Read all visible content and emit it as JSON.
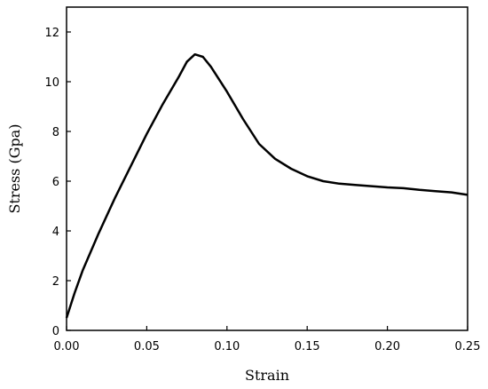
{
  "chart_data": {
    "type": "line",
    "x_label": "Strain",
    "y_label": "Stress (Gpa)",
    "x": [
      0,
      0.005,
      0.01,
      0.02,
      0.03,
      0.04,
      0.05,
      0.06,
      0.07,
      0.075,
      0.08,
      0.085,
      0.09,
      0.1,
      0.11,
      0.12,
      0.13,
      0.14,
      0.15,
      0.16,
      0.17,
      0.18,
      0.19,
      0.2,
      0.21,
      0.22,
      0.23,
      0.24,
      0.25
    ],
    "series": [
      {
        "color": "#000000",
        "values": [
          0.5,
          1.5,
          2.4,
          3.9,
          5.3,
          6.6,
          7.9,
          9.1,
          10.2,
          10.8,
          11.1,
          11.0,
          10.6,
          9.6,
          8.5,
          7.5,
          6.9,
          6.5,
          6.2,
          6.0,
          5.9,
          5.85,
          5.8,
          5.75,
          5.72,
          5.65,
          5.6,
          5.55,
          5.45
        ]
      }
    ],
    "xlim": [
      0,
      0.25
    ],
    "xticks": [
      {
        "value": 0,
        "label": "0.00"
      },
      0.05,
      {
        "value": 0.1,
        "label": "0.10"
      },
      0.15,
      {
        "value": 0.2,
        "label": "0.20"
      },
      0.25
    ],
    "ylim": [
      0,
      13
    ],
    "yticks": [
      0,
      2,
      4,
      6,
      8,
      10,
      12
    ]
  }
}
